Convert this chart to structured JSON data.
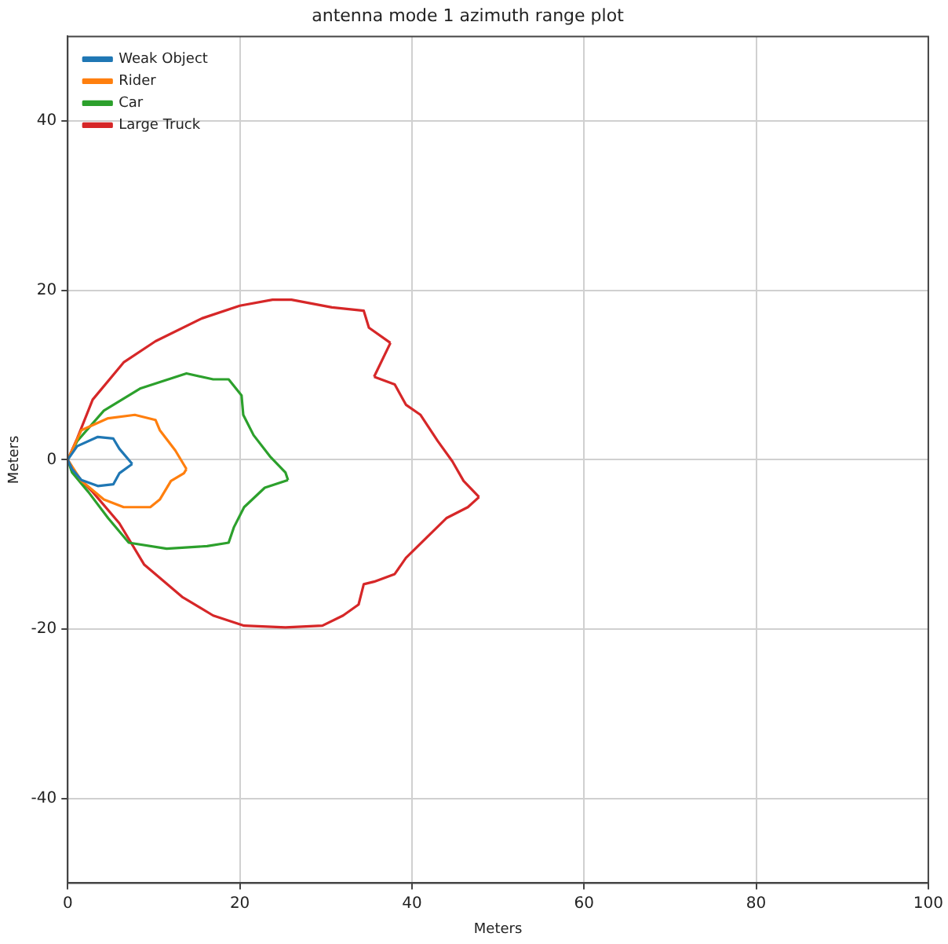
{
  "chart_data": {
    "type": "line",
    "title": "antenna mode 1 azimuth range plot",
    "xlabel": "Meters",
    "ylabel": "Meters",
    "xlim": [
      0,
      100
    ],
    "xticks": [
      0,
      20,
      40,
      60,
      80,
      100
    ],
    "ylim": [
      -50,
      50
    ],
    "yticks": [
      -40,
      -20,
      0,
      20,
      40
    ],
    "grid": true,
    "legend": "top left",
    "marker": "none",
    "line_style": "solid",
    "series": [
      {
        "name": "Weak Object",
        "color": "#1f77b4",
        "x": [
          0,
          1.1,
          3.5,
          5.3,
          6,
          7.5
        ],
        "values": [
          0,
          1.6,
          2.7,
          2.5,
          1.3,
          -0.5
        ]
      },
      {
        "color": "#1f77b4",
        "x": [
          0,
          0.5,
          1.6,
          3.5,
          5.3,
          6,
          7.5
        ],
        "values": [
          0,
          -1.1,
          -2.4,
          -3.1,
          -2.9,
          -1.6,
          -0.5
        ]
      },
      {
        "name": "Rider",
        "color": "#ff7f0e",
        "x": [
          0,
          1.6,
          4.7,
          7.8,
          10.2,
          10.7,
          12.5,
          13.8
        ],
        "values": [
          0,
          3.5,
          4.9,
          5.3,
          4.7,
          3.5,
          1.1,
          -1.1
        ]
      },
      {
        "color": "#ff7f0e",
        "x": [
          0,
          1.6,
          4.2,
          6.5,
          9.6,
          10.7,
          12,
          13.5,
          13.8
        ],
        "values": [
          0,
          -2.5,
          -4.7,
          -5.6,
          -5.6,
          -4.7,
          -2.5,
          -1.6,
          -1.1
        ]
      },
      {
        "name": "Car",
        "color": "#2ca02c",
        "x": [
          0,
          1.1,
          4.2,
          8.4,
          13.8,
          16.9,
          18.7,
          20.2,
          20.4,
          21.6,
          23.5,
          25.3,
          25.6
        ],
        "values": [
          0,
          2.2,
          5.8,
          8.4,
          10.2,
          9.5,
          9.5,
          7.6,
          5.3,
          2.9,
          0.4,
          -1.5,
          -2.4
        ]
      },
      {
        "color": "#2ca02c",
        "x": [
          0,
          0.5,
          2.4,
          4.7,
          7.1,
          11.5,
          16.2,
          18.7,
          19.3,
          20.5,
          22.9,
          25.6
        ],
        "values": [
          0,
          -1.5,
          -3.8,
          -6.9,
          -9.8,
          -10.5,
          -10.2,
          -9.8,
          -8,
          -5.6,
          -3.3,
          -2.4
        ]
      },
      {
        "name": "Large Truck",
        "color": "#d62728",
        "x": [
          0,
          1.1,
          2.9,
          6.5,
          10.2,
          15.6,
          20,
          23.8,
          26,
          30.7,
          34.4,
          35,
          37.5
        ],
        "values": [
          0,
          2.5,
          7.1,
          11.5,
          14,
          16.7,
          18.2,
          18.9,
          18.9,
          18,
          17.6,
          15.6,
          13.8
        ]
      },
      {
        "color": "#d62728",
        "x": [
          35.6,
          37.5
        ],
        "values": [
          9.8,
          13.8
        ]
      },
      {
        "color": "#d62728",
        "x": [
          35.6,
          38,
          39.3,
          41,
          43,
          44.7,
          46,
          47.8
        ],
        "values": [
          9.8,
          8.9,
          6.5,
          5.3,
          2.2,
          -0.2,
          -2.5,
          -4.4
        ]
      },
      {
        "color": "#d62728",
        "x": [
          0,
          1.1,
          2.9,
          6,
          8.9,
          13.3,
          16.9,
          20.5,
          25.3,
          29.6,
          32,
          33.8,
          34.4,
          35.6,
          38,
          39.3,
          41.6,
          44,
          46.5,
          47.8
        ],
        "values": [
          0,
          -2,
          -3.8,
          -7.5,
          -12.4,
          -16.2,
          -18.4,
          -19.6,
          -19.8,
          -19.6,
          -18.4,
          -17.1,
          -14.7,
          -14.4,
          -13.5,
          -11.6,
          -9.3,
          -6.9,
          -5.6,
          -4.4
        ]
      }
    ]
  }
}
